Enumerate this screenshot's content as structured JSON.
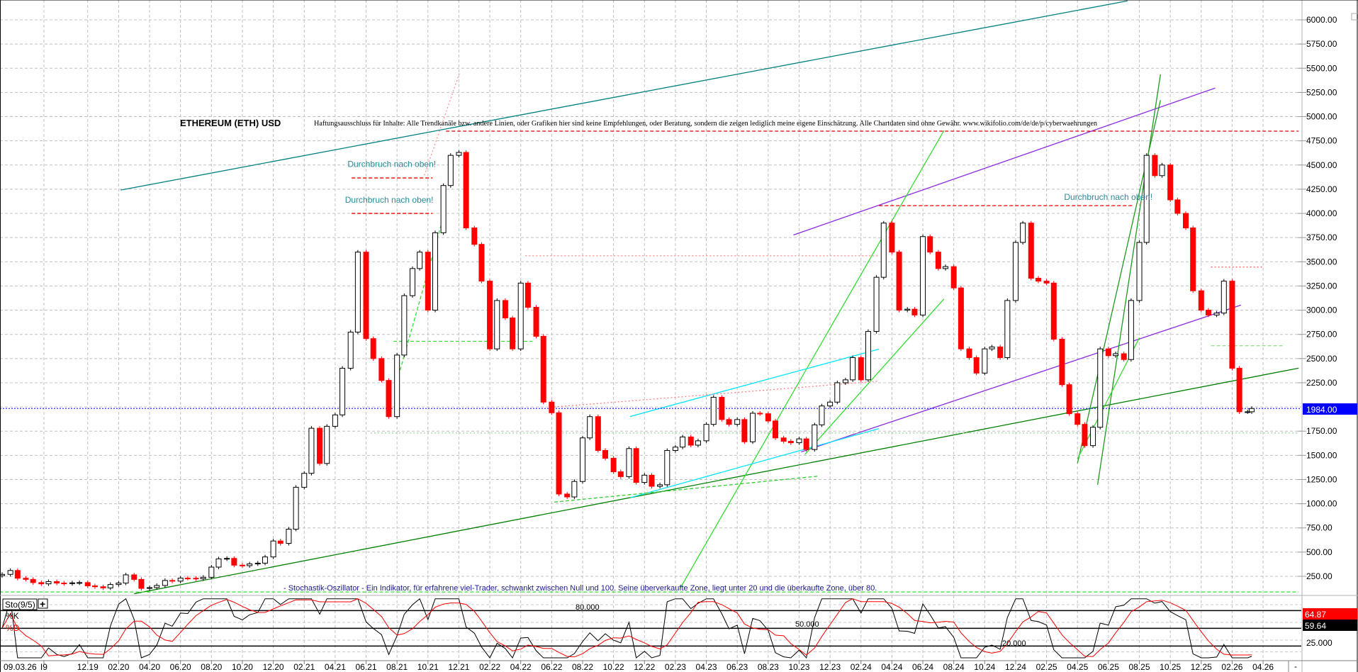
{
  "chart_data": {
    "type": "candlestick",
    "title": "ETHEREUM (ETH) USD",
    "disclaimer": "Haftungsausschluss für Inhalte: Alle Trendkanäle bzw. andere Linien, oder Grafiken hier sind keine Empfehlungen, oder Beratung, sondern die zeigen lediglich meine eigene Einschätzung. Alle Chartdaten sind ohne Gewähr.  www.wikifolio.com/de/de/p/cyberwaehrungen",
    "ylim": [
      0,
      6200
    ],
    "grid": true,
    "y_ticks": [
      "6000.00",
      "5750.00",
      "5500.00",
      "5250.00",
      "5000.00",
      "4750.00",
      "4500.00",
      "4250.00",
      "4000.00",
      "3750.00",
      "3500.00",
      "3250.00",
      "3000.00",
      "2750.00",
      "2500.00",
      "2250.00",
      "1750.00",
      "1500.00",
      "1250.00",
      "1000.00",
      "750.00",
      "500.00",
      "250.00"
    ],
    "x_ticks": [
      {
        "label": "09.03.26",
        "date": null
      },
      {
        "label": "I9",
        "date": "2019-09-06"
      },
      {
        "label": "12.19",
        "date": "2019-12-01"
      },
      {
        "label": "02.20",
        "date": "2020-02-01"
      },
      {
        "label": "04.20",
        "date": "2020-04-01"
      },
      {
        "label": "06.20",
        "date": "2020-06-01"
      },
      {
        "label": "08.20",
        "date": "2020-08-01"
      },
      {
        "label": "10.20",
        "date": "2020-10-01"
      },
      {
        "label": "12.20",
        "date": "2020-12-01"
      },
      {
        "label": "02.21",
        "date": "2021-02-01"
      },
      {
        "label": "04.21",
        "date": "2021-04-01"
      },
      {
        "label": "06.21",
        "date": "2021-06-01"
      },
      {
        "label": "08.21",
        "date": "2021-08-01"
      },
      {
        "label": "10.21",
        "date": "2021-10-01"
      },
      {
        "label": "12.21",
        "date": "2021-12-01"
      },
      {
        "label": "02.22",
        "date": "2022-02-01"
      },
      {
        "label": "04.22",
        "date": "2022-04-01"
      },
      {
        "label": "06.22",
        "date": "2022-06-01"
      },
      {
        "label": "08.22",
        "date": "2022-08-01"
      },
      {
        "label": "10.22",
        "date": "2022-10-01"
      },
      {
        "label": "12.22",
        "date": "2022-12-01"
      },
      {
        "label": "02.23",
        "date": "2023-02-01"
      },
      {
        "label": "04.23",
        "date": "2023-04-01"
      },
      {
        "label": "06.23",
        "date": "2023-06-01"
      },
      {
        "label": "08.23",
        "date": "2023-08-01"
      },
      {
        "label": "10.23",
        "date": "2023-10-01"
      },
      {
        "label": "12.23",
        "date": "2023-12-01"
      },
      {
        "label": "02.24",
        "date": "2024-02-01"
      },
      {
        "label": "04.24",
        "date": "2024-04-01"
      },
      {
        "label": "06.24",
        "date": "2024-06-01"
      },
      {
        "label": "08.24",
        "date": "2024-08-01"
      },
      {
        "label": "10.24",
        "date": "2024-10-01"
      },
      {
        "label": "12.24",
        "date": "2024-12-01"
      },
      {
        "label": "02.25",
        "date": "2025-02-01"
      },
      {
        "label": "04.25",
        "date": "2025-04-01"
      },
      {
        "label": "06.25",
        "date": "2025-06-01"
      },
      {
        "label": "08.25",
        "date": "2025-08-01"
      },
      {
        "label": "10.25",
        "date": "2025-10-01"
      },
      {
        "label": "12.25",
        "date": "2025-12-01"
      },
      {
        "label": "02.26",
        "date": "2026-02-01"
      },
      {
        "label": "04.26",
        "date": "2026-04-01"
      }
    ],
    "series": {
      "dates": [
        "2019-06-15",
        "2019-07-01",
        "2019-07-15",
        "2019-08-01",
        "2019-08-15",
        "2019-09-01",
        "2019-09-15",
        "2019-10-01",
        "2019-10-15",
        "2019-11-01",
        "2019-11-15",
        "2019-12-01",
        "2019-12-15",
        "2020-01-01",
        "2020-01-15",
        "2020-02-01",
        "2020-02-15",
        "2020-03-01",
        "2020-03-15",
        "2020-04-01",
        "2020-04-15",
        "2020-05-01",
        "2020-05-15",
        "2020-06-01",
        "2020-06-15",
        "2020-07-01",
        "2020-07-15",
        "2020-08-01",
        "2020-08-15",
        "2020-09-01",
        "2020-09-15",
        "2020-10-01",
        "2020-10-15",
        "2020-11-01",
        "2020-11-15",
        "2020-12-01",
        "2020-12-15",
        "2021-01-01",
        "2021-01-15",
        "2021-02-01",
        "2021-02-15",
        "2021-03-01",
        "2021-03-15",
        "2021-04-01",
        "2021-04-15",
        "2021-05-01",
        "2021-05-15",
        "2021-06-01",
        "2021-06-15",
        "2021-07-01",
        "2021-07-15",
        "2021-08-01",
        "2021-08-15",
        "2021-09-01",
        "2021-09-15",
        "2021-10-01",
        "2021-10-15",
        "2021-11-01",
        "2021-11-15",
        "2021-12-01",
        "2021-12-15",
        "2022-01-01",
        "2022-01-15",
        "2022-02-01",
        "2022-02-15",
        "2022-03-01",
        "2022-03-15",
        "2022-04-01",
        "2022-04-15",
        "2022-05-01",
        "2022-05-15",
        "2022-06-01",
        "2022-06-15",
        "2022-07-01",
        "2022-07-15",
        "2022-08-01",
        "2022-08-15",
        "2022-09-01",
        "2022-09-15",
        "2022-10-01",
        "2022-10-15",
        "2022-11-01",
        "2022-11-15",
        "2022-12-01",
        "2022-12-15",
        "2023-01-01",
        "2023-01-15",
        "2023-02-01",
        "2023-02-15",
        "2023-03-01",
        "2023-03-15",
        "2023-04-01",
        "2023-04-15",
        "2023-05-01",
        "2023-05-15",
        "2023-06-01",
        "2023-06-15",
        "2023-07-01",
        "2023-07-15",
        "2023-08-01",
        "2023-08-15",
        "2023-09-01",
        "2023-09-15",
        "2023-10-01",
        "2023-10-15",
        "2023-11-01",
        "2023-11-15",
        "2023-12-01",
        "2023-12-15",
        "2024-01-01",
        "2024-01-15",
        "2024-02-01",
        "2024-02-15",
        "2024-03-01",
        "2024-03-15",
        "2024-04-01",
        "2024-04-15",
        "2024-05-01",
        "2024-05-15",
        "2024-06-01",
        "2024-06-15",
        "2024-07-01",
        "2024-07-15",
        "2024-08-01",
        "2024-08-15",
        "2024-09-01",
        "2024-09-15",
        "2024-10-01",
        "2024-10-15",
        "2024-11-01",
        "2024-11-15",
        "2024-12-01",
        "2024-12-15",
        "2025-01-01",
        "2025-01-15",
        "2025-02-01",
        "2025-02-15",
        "2025-03-01",
        "2025-03-15",
        "2025-04-01",
        "2025-04-15",
        "2025-05-01",
        "2025-05-15",
        "2025-06-01",
        "2025-06-15",
        "2025-07-01",
        "2025-07-15",
        "2025-08-01",
        "2025-08-15",
        "2025-09-01",
        "2025-09-15",
        "2025-10-01",
        "2025-10-15",
        "2025-11-01",
        "2025-11-15",
        "2025-12-01",
        "2025-12-15",
        "2026-01-01",
        "2026-01-15",
        "2026-02-01",
        "2026-02-15",
        "2026-03-01",
        "2026-03-09"
      ],
      "close": [
        270,
        310,
        230,
        218,
        185,
        172,
        195,
        180,
        175,
        182,
        185,
        151,
        142,
        130,
        165,
        180,
        265,
        218,
        125,
        133,
        155,
        207,
        200,
        231,
        230,
        225,
        240,
        345,
        430,
        435,
        365,
        360,
        378,
        386,
        450,
        615,
        590,
        737,
        1170,
        1314,
        1780,
        1416,
        1800,
        1918,
        2400,
        2773,
        3600,
        2706,
        2500,
        2274,
        1900,
        2536,
        3150,
        3430,
        3600,
        3000,
        3800,
        4288,
        4600,
        4630,
        3850,
        3680,
        3300,
        2600,
        3100,
        2920,
        2600,
        3280,
        3030,
        2730,
        2050,
        1940,
        1100,
        1070,
        1230,
        1680,
        1900,
        1550,
        1470,
        1330,
        1280,
        1570,
        1220,
        1295,
        1180,
        1196,
        1550,
        1585,
        1690,
        1605,
        1650,
        1820,
        2100,
        1870,
        1820,
        1870,
        1640,
        1935,
        1930,
        1855,
        1680,
        1645,
        1630,
        1670,
        1560,
        1815,
        2010,
        2050,
        2250,
        2280,
        2510,
        2280,
        2780,
        3340,
        3900,
        3600,
        3000,
        3010,
        2950,
        3760,
        3600,
        3430,
        3450,
        3230,
        2600,
        2510,
        2350,
        2600,
        2620,
        2510,
        3100,
        3700,
        3900,
        3330,
        3300,
        3280,
        2700,
        2230,
        1930,
        1820,
        1600,
        1790,
        2600,
        2530,
        2550,
        2490,
        3100,
        3700,
        4600,
        4390,
        4500,
        4140,
        4000,
        3850,
        3200,
        3000,
        2950,
        2970,
        3300,
        2400,
        1950,
        1950,
        1984
      ]
    },
    "last_price": "1984.00",
    "colors": {
      "up": "#000000",
      "down": "#ff0000",
      "last_price_box": "#0000ff"
    },
    "trendlines": [
      {
        "from": [
          "2020-02-05",
          4241
        ],
        "to": [
          "2025-07-08",
          6196
        ],
        "color": "#008080",
        "style": "solid"
      },
      {
        "from": [
          "2020-03-01",
          70
        ],
        "to": [
          "2026-06-10",
          2401
        ],
        "color": "#008000",
        "style": "solid"
      },
      {
        "from": [
          "2023-09-20",
          3777
        ],
        "to": [
          "2025-12-28",
          5295
        ],
        "color": "#8a2be2",
        "style": "solid"
      },
      {
        "from": [
          "2023-10-05",
          1535
        ],
        "to": [
          "2026-02-18",
          3053
        ],
        "color": "#8a2be2",
        "style": "solid"
      },
      {
        "from": [
          "2023-02-10",
          124
        ],
        "to": [
          "2024-07-12",
          4857
        ],
        "color": "#33dd33",
        "style": "solid"
      },
      {
        "from": [
          "2023-10-12",
          1508
        ],
        "to": [
          "2024-07-12",
          3116
        ],
        "color": "#33dd33",
        "style": "solid"
      },
      {
        "from": [
          "2022-11-03",
          1901
        ],
        "to": [
          "2024-03-06",
          2598
        ],
        "color": "#00e5ff",
        "style": "solid"
      },
      {
        "from": [
          "2022-11-03",
          1062
        ],
        "to": [
          "2024-03-06",
          1776
        ],
        "color": "#00e5ff",
        "style": "solid"
      },
      {
        "from": [
          "2022-06-06",
          1017
        ],
        "to": [
          "2023-11-09",
          1285
        ],
        "color": "#33cc33",
        "style": "dash"
      },
      {
        "from": [
          "2022-06-06",
          2000
        ],
        "to": [
          "2024-03-06",
          2267
        ],
        "color": "#ff8080",
        "style": "dot"
      },
      {
        "from": [
          "2021-11-06",
          4850
        ],
        "to": [
          "2026-06-10",
          4850
        ],
        "color": "#e00000",
        "style": "dash"
      },
      {
        "from": [
          "2024-03-06",
          4080
        ],
        "to": [
          "2025-07-20",
          4080
        ],
        "color": "#e00000",
        "style": "dash"
      },
      {
        "from": [
          "2021-05-03",
          4366
        ],
        "to": [
          "2021-10-10",
          4366
        ],
        "color": "#e00000",
        "style": "dash"
      },
      {
        "from": [
          "2021-05-03",
          4000
        ],
        "to": [
          "2021-10-10",
          4000
        ],
        "color": "#e00000",
        "style": "dash"
      },
      {
        "from": [
          "2022-04-10",
          3562
        ],
        "to": [
          "2024-03-06",
          3562
        ],
        "color": "#ff9090",
        "style": "dot"
      },
      {
        "from": [
          "2025-12-20",
          3446
        ],
        "to": [
          "2026-03-30",
          3446
        ],
        "color": "#ff6060",
        "style": "dot"
      },
      {
        "from": [
          "2021-07-24",
          2678
        ],
        "to": [
          "2022-04-24",
          2678
        ],
        "color": "#33dd33",
        "style": "dash"
      },
      {
        "from": [
          "2025-12-20",
          2633
        ],
        "to": [
          "2026-05-10",
          2633
        ],
        "color": "#99e099",
        "style": "dash"
      },
      {
        "from": [
          "2021-06-10",
          1731
        ],
        "to": [
          "2026-06-10",
          1731
        ],
        "color": "#a8d8a8",
        "style": "dot"
      },
      {
        "from": [
          "2019-06-10",
          88
        ],
        "to": [
          "2026-06-10",
          88
        ],
        "color": "#33dd33",
        "style": "dash"
      },
      {
        "from": [
          "2021-09-24",
          4393
        ],
        "to": [
          "2021-12-03",
          5464
        ],
        "color": "#ff9090",
        "style": "dot"
      },
      {
        "from": [
          "2021-08-01",
          2267
        ],
        "to": [
          "2021-11-01",
          3964
        ],
        "color": "#33dd33",
        "style": "dash"
      },
      {
        "from": [
          "2025-04-01",
          1419
        ],
        "to": [
          "2025-09-12",
          5170
        ],
        "color": "#229922",
        "style": "solid"
      },
      {
        "from": [
          "2025-05-10",
          1196
        ],
        "to": [
          "2025-09-12",
          5437
        ],
        "color": "#229922",
        "style": "solid"
      },
      {
        "from": [
          "2025-04-01",
          1464
        ],
        "to": [
          "2025-08-01",
          2714
        ],
        "color": "#33dd33",
        "style": "solid"
      }
    ],
    "annotations": [
      {
        "text": "Durchbruch nach oben!",
        "date": "2021-04-25",
        "value": 4480
      },
      {
        "text": "Durchbruch nach oben!",
        "date": "2021-04-20",
        "value": 4110
      },
      {
        "text": "Durchbruch nach oben!",
        "date": "2025-03-05",
        "value": 4140
      }
    ],
    "indicator": {
      "name": "Sto(9/5)",
      "add_symbol": "+",
      "k_label": "%K",
      "d_label": "%D",
      "description": "- Stochastik-Oszillator - Ein Indikator, für erfahrene viel-Trader, schwankt zwischen Null und 100. Seine überverkaufte Zone, liegt unter 20 und die überkaufte Zone, über 80.",
      "levels": [
        80,
        50,
        20
      ],
      "level_labels": [
        "80.000",
        "50.000",
        "20.000"
      ],
      "axis_label": "25.000",
      "ylim": [
        0,
        100
      ],
      "d_value": "64.87",
      "k_value": "59.64",
      "colors": {
        "k": "#000000",
        "d": "#ff0000"
      }
    },
    "corner_symbol": "-"
  }
}
